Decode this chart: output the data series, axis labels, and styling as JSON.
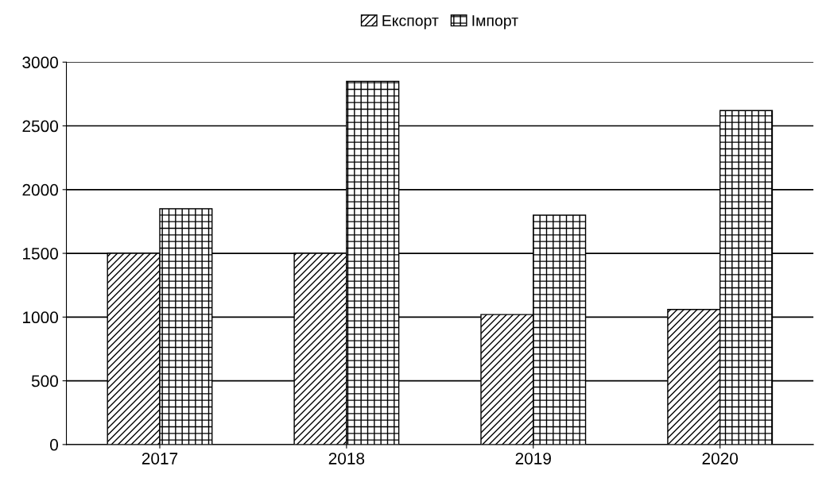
{
  "chart_data": {
    "type": "bar",
    "categories": [
      "2017",
      "2018",
      "2019",
      "2020"
    ],
    "series": [
      {
        "name": "Експорт",
        "color": "#000000",
        "values": [
          1500,
          1500,
          1020,
          1060
        ]
      },
      {
        "name": "Імпорт",
        "color": "#000000",
        "values": [
          1850,
          2850,
          1800,
          2620
        ]
      }
    ],
    "ylim": [
      0,
      3000
    ],
    "yticks": [
      0,
      500,
      1000,
      1500,
      2000,
      2500,
      3000
    ],
    "grid": "y",
    "legend": "top"
  }
}
